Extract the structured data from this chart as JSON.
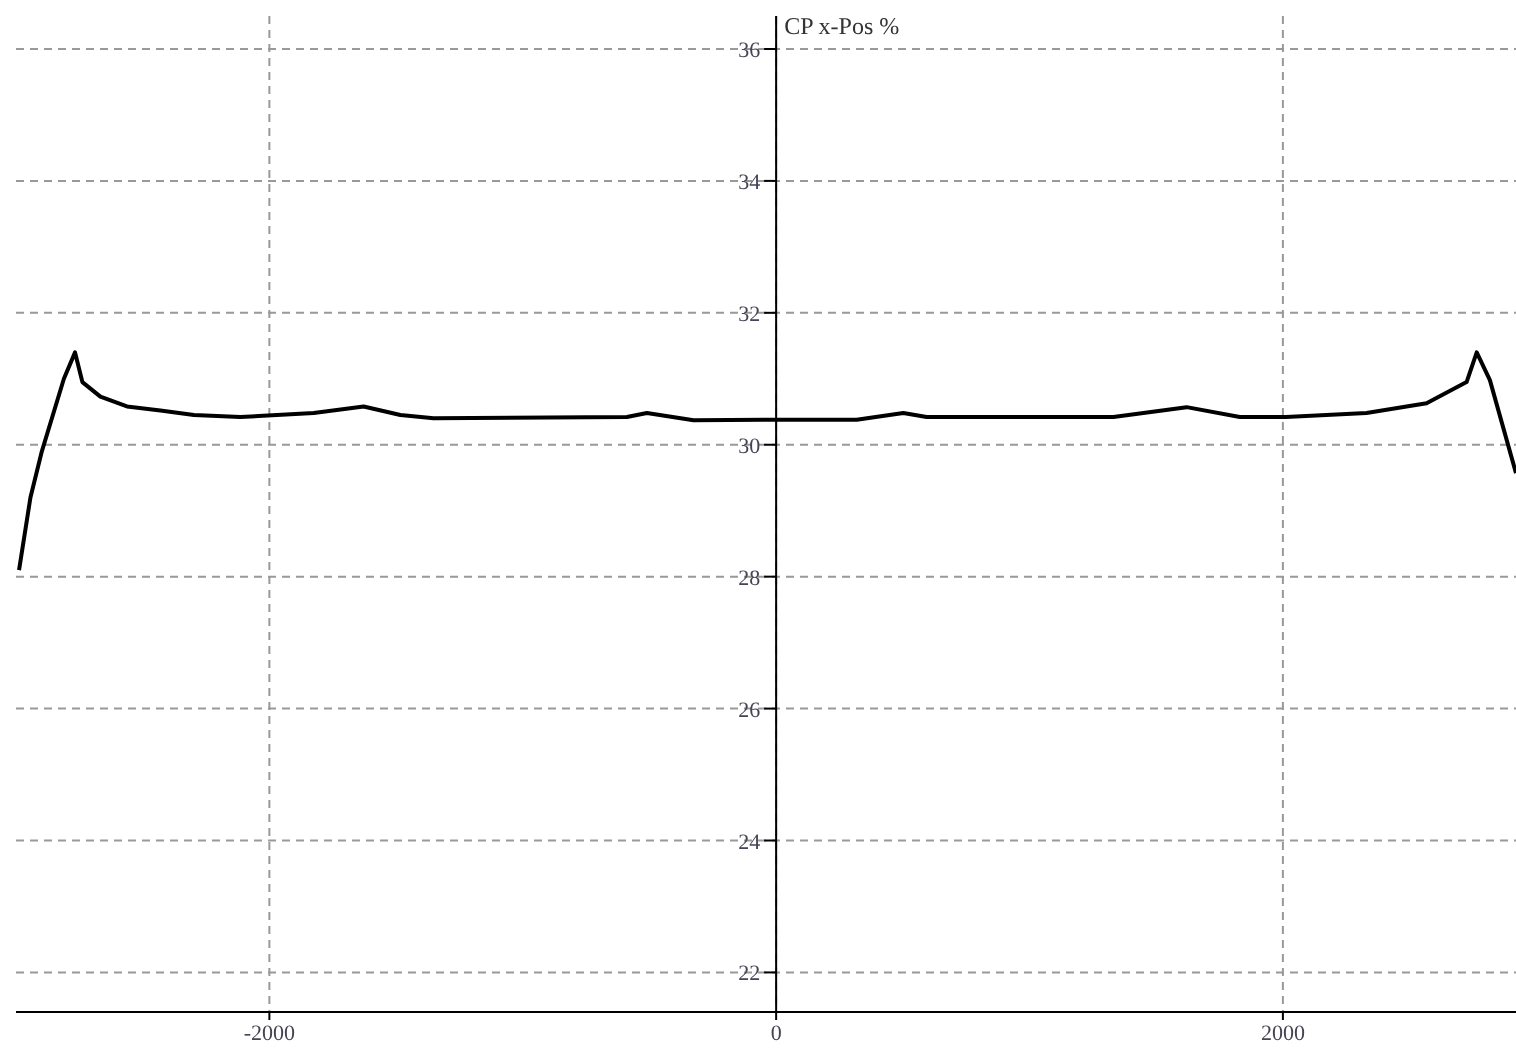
{
  "chart_data": {
    "type": "line",
    "ylabel": "CP x-Pos %",
    "x": [
      -2988,
      -2943,
      -2898,
      -2811,
      -2767,
      -2738,
      -2667,
      -2562,
      -2430,
      -2298,
      -2115,
      -1825,
      -1628,
      -1483,
      -1352,
      -589,
      -510,
      -326,
      -10,
      318,
      502,
      594,
      1331,
      1620,
      1830,
      2012,
      2330,
      2567,
      2725,
      2765,
      2817,
      2920
    ],
    "series": [
      {
        "color": "#000000",
        "values": [
          28.1,
          29.2,
          29.9,
          31.0,
          31.4,
          30.95,
          30.73,
          30.58,
          30.52,
          30.45,
          30.42,
          30.48,
          30.58,
          30.45,
          30.4,
          30.42,
          30.48,
          30.37,
          30.38,
          30.38,
          30.48,
          30.42,
          30.42,
          30.57,
          30.42,
          30.42,
          30.48,
          30.63,
          30.95,
          31.4,
          30.98,
          29.57
        ]
      }
    ],
    "xlim": [
      -3000,
      2920
    ],
    "xticks": [
      -2000,
      0,
      2000
    ],
    "ylim": [
      21.4,
      36.5
    ],
    "yticks": [
      22,
      24,
      26,
      28,
      30,
      32,
      34,
      36
    ],
    "grid": true,
    "marker": "none",
    "line_style": "solid",
    "legend": false
  }
}
